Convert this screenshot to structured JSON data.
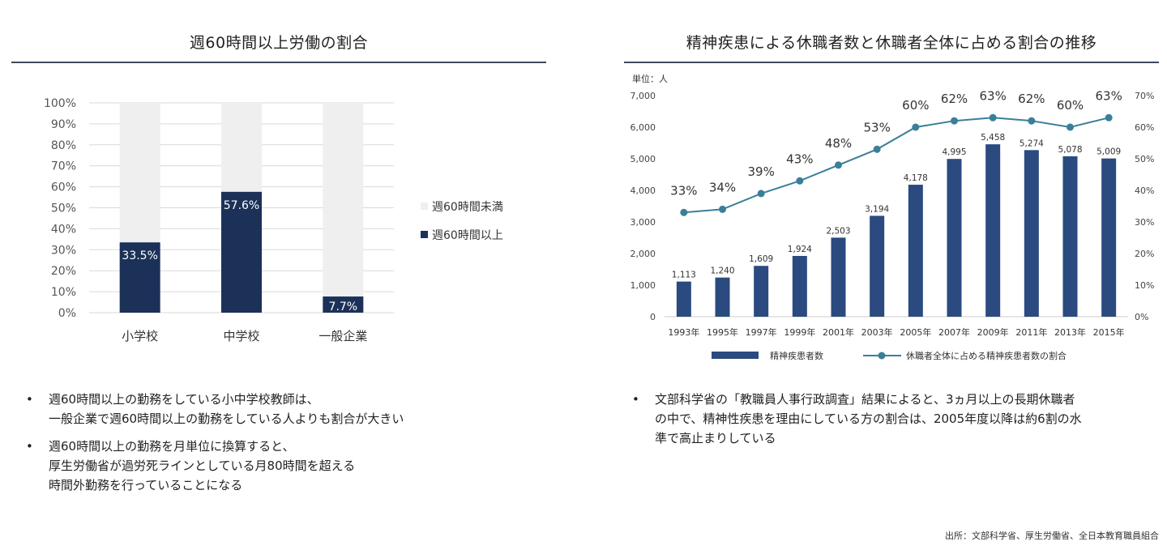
{
  "left_panel": {
    "title": "週60時間以上労働の割合",
    "notes": [
      {
        "lines": [
          "週60時間以上の勤務をしている小中学校教師は、",
          "一般企業で週60時間以上の勤務をしている人よりも割合が大きい"
        ]
      },
      {
        "lines": [
          "週60時間以上の勤務を月単位に換算すると、",
          "厚生労働省が過労死ラインとしている月80時間を超える",
          "時間外勤務を行っていることになる"
        ]
      }
    ]
  },
  "right_panel": {
    "title": "精神疾患による休職者数と休職者全体に占める割合の推移",
    "notes": [
      {
        "lines": [
          "文部科学省の「教職員人事行政調査」結果によると、3ヵ月以上の長期休職者",
          "の中で、精神性疾患を理由にしている方の割合は、2005年度以降は約6割の水",
          "準で高止まりしている"
        ]
      }
    ]
  },
  "bullet": "•",
  "source": "出所：文部科学省、厚生労働省、全日本教育職員組合",
  "colors": {
    "navy": "#1c3158",
    "rest": "#efefef",
    "bar2": "#2a4a80",
    "line": "#3a7f99",
    "rule": "#3d4b5a"
  },
  "chart_data": [
    {
      "type": "bar",
      "stacked": true,
      "title": "週60時間以上労働の割合",
      "categories": [
        "小学校",
        "中学校",
        "一般企業"
      ],
      "series": [
        {
          "name": "週60時間以上",
          "values": [
            33.5,
            57.6,
            7.7
          ],
          "labels": [
            "33.5%",
            "57.6%",
            "7.7%"
          ]
        },
        {
          "name": "週60時間未満",
          "values": [
            66.5,
            42.4,
            92.3
          ]
        }
      ],
      "legend": [
        "週60時間未満",
        "週60時間以上"
      ],
      "yticks": [
        "0%",
        "10%",
        "20%",
        "30%",
        "40%",
        "50%",
        "60%",
        "70%",
        "80%",
        "90%",
        "100%"
      ],
      "ylim": [
        0,
        100
      ],
      "legend_position": "right"
    },
    {
      "type": "bar+line",
      "title": "精神疾患による休職者数と休職者全体に占める割合の推移",
      "unit_label": "単位：人",
      "categories": [
        "1993年",
        "1995年",
        "1997年",
        "1999年",
        "2001年",
        "2003年",
        "2005年",
        "2007年",
        "2009年",
        "2011年",
        "2013年",
        "2015年"
      ],
      "bar_series": {
        "name": "精神疾患者数",
        "values": [
          1113,
          1240,
          1609,
          1924,
          2503,
          3194,
          4178,
          4995,
          5458,
          5274,
          5078,
          5009
        ],
        "labels": [
          "1,113",
          "1,240",
          "1,609",
          "1,924",
          "2,503",
          "3,194",
          "4,178",
          "4,995",
          "5,458",
          "5,274",
          "5,078",
          "5,009"
        ]
      },
      "line_series": {
        "name": "休職者全体に占める精神疾患者数の割合",
        "values": [
          33,
          34,
          39,
          43,
          48,
          53,
          60,
          62,
          63,
          62,
          60,
          63
        ],
        "labels": [
          "33%",
          "34%",
          "39%",
          "43%",
          "48%",
          "53%",
          "60%",
          "62%",
          "63%",
          "62%",
          "60%",
          "63%"
        ]
      },
      "yleft_ticks": [
        "0",
        "1,000",
        "2,000",
        "3,000",
        "4,000",
        "5,000",
        "6,000",
        "7,000"
      ],
      "yleft_lim": [
        0,
        7000
      ],
      "yright_ticks": [
        "0%",
        "10%",
        "20%",
        "30%",
        "40%",
        "50%",
        "60%",
        "70%"
      ],
      "yright_lim": [
        0,
        70
      ],
      "legend_position": "bottom"
    }
  ]
}
